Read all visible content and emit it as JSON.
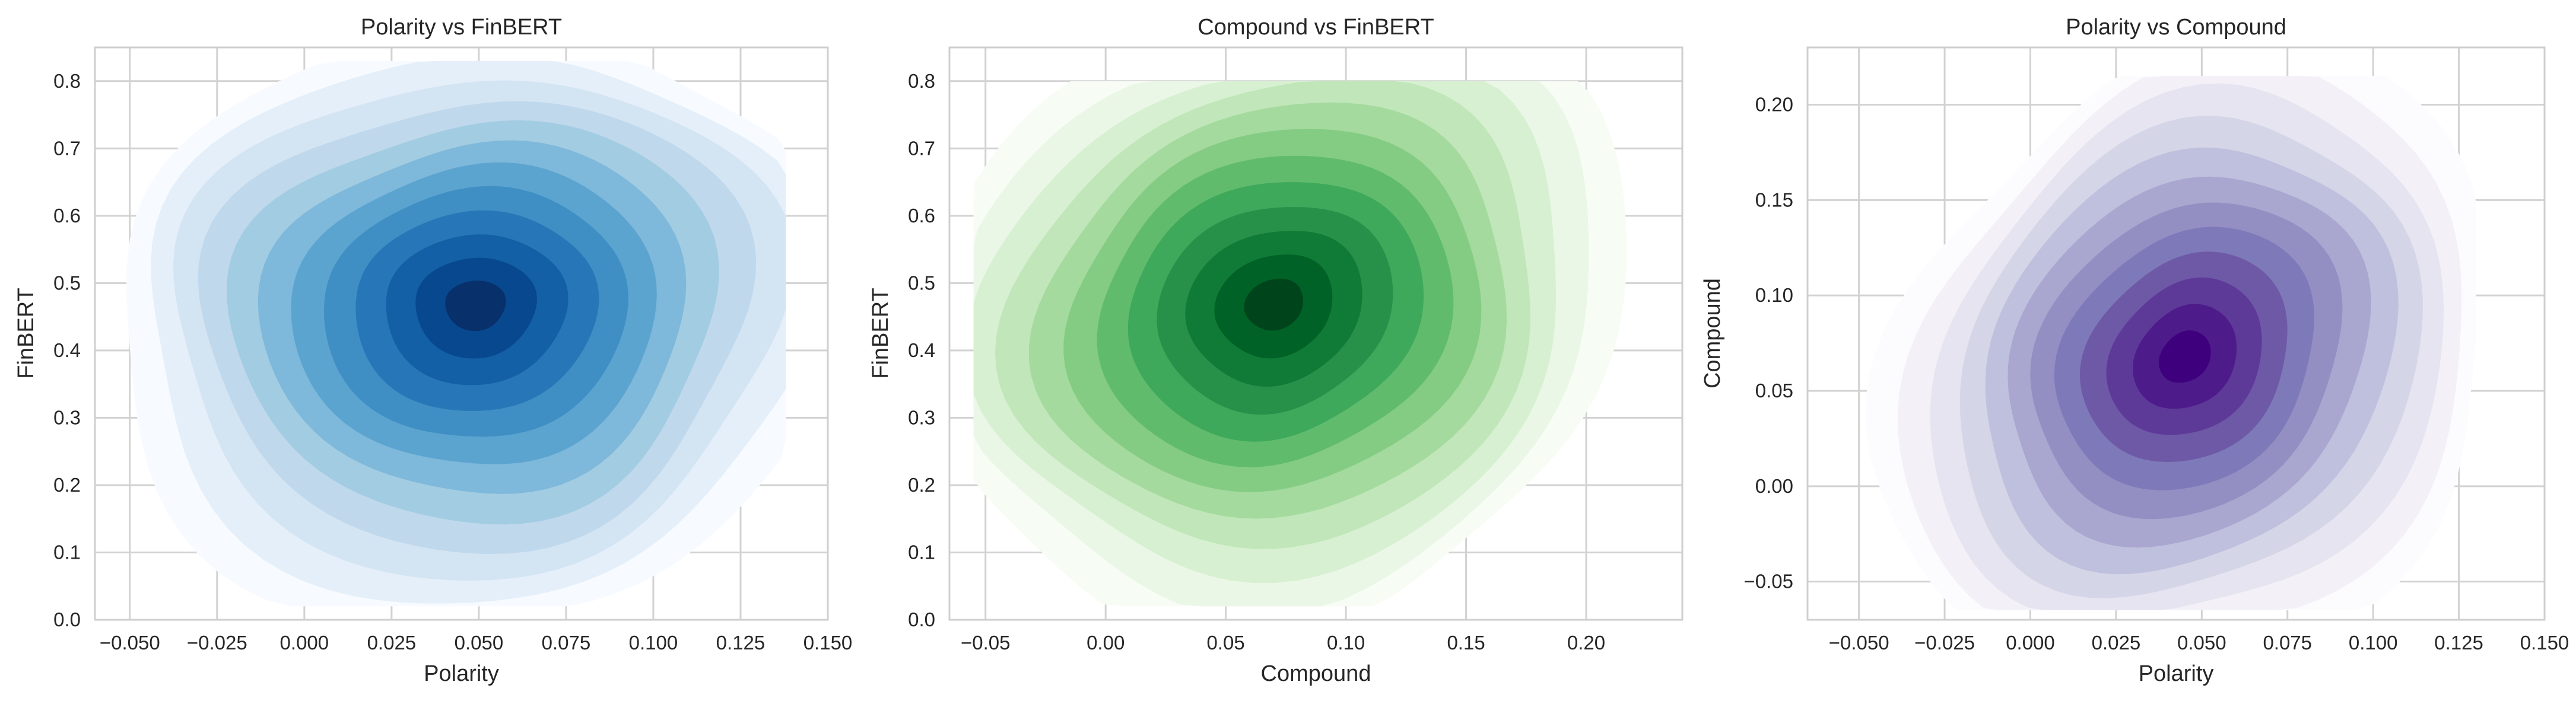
{
  "chart_data": [
    {
      "type": "contour",
      "title": "Polarity vs FinBERT",
      "xlabel": "Polarity",
      "ylabel": "FinBERT",
      "xlim": [
        -0.06,
        0.15
      ],
      "ylim": [
        0.0,
        0.85
      ],
      "xticks": [
        "−0.050",
        "−0.025",
        "0.000",
        "0.025",
        "0.050",
        "0.075",
        "0.100",
        "0.125",
        "0.150"
      ],
      "xtick_values": [
        -0.05,
        -0.025,
        0.0,
        0.025,
        0.05,
        0.075,
        0.1,
        0.125,
        0.15
      ],
      "yticks": [
        "0.0",
        "0.1",
        "0.2",
        "0.3",
        "0.4",
        "0.5",
        "0.6",
        "0.7",
        "0.8"
      ],
      "ytick_values": [
        0.0,
        0.1,
        0.2,
        0.3,
        0.4,
        0.5,
        0.6,
        0.7,
        0.8
      ],
      "peak": [
        0.049,
        0.47
      ],
      "extent_x": [
        -0.055,
        0.138
      ],
      "extent_y": [
        0.02,
        0.83
      ],
      "colormap": [
        "#f7fbff",
        "#deebf7",
        "#c6dbef",
        "#9ecae1",
        "#6baed6",
        "#4292c6",
        "#2171b5",
        "#08519c",
        "#08306b"
      ],
      "grid": true
    },
    {
      "type": "contour",
      "title": "Compound vs FinBERT",
      "xlabel": "Compound",
      "ylabel": "FinBERT",
      "xlim": [
        -0.065,
        0.24
      ],
      "ylim": [
        0.0,
        0.85
      ],
      "xticks": [
        "−0.05",
        "0.00",
        "0.05",
        "0.10",
        "0.15",
        "0.20"
      ],
      "xtick_values": [
        -0.05,
        0.0,
        0.05,
        0.1,
        0.15,
        0.2
      ],
      "yticks": [
        "0.0",
        "0.1",
        "0.2",
        "0.3",
        "0.4",
        "0.5",
        "0.6",
        "0.7",
        "0.8"
      ],
      "ytick_values": [
        0.0,
        0.1,
        0.2,
        0.3,
        0.4,
        0.5,
        0.6,
        0.7,
        0.8
      ],
      "peak": [
        0.07,
        0.47
      ],
      "extent_x": [
        -0.055,
        0.22
      ],
      "extent_y": [
        0.02,
        0.8
      ],
      "colormap": [
        "#f7fcf5",
        "#e5f5e0",
        "#c7e9c0",
        "#a1d99b",
        "#74c476",
        "#41ab5d",
        "#238b45",
        "#006d2c",
        "#00441b"
      ],
      "grid": true
    },
    {
      "type": "contour",
      "title": "Polarity vs Compound",
      "xlabel": "Polarity",
      "ylabel": "Compound",
      "xlim": [
        -0.065,
        0.15
      ],
      "ylim": [
        -0.07,
        0.23
      ],
      "xticks": [
        "−0.050",
        "−0.025",
        "0.000",
        "0.025",
        "0.050",
        "0.075",
        "0.100",
        "0.125",
        "0.150"
      ],
      "xtick_values": [
        -0.05,
        -0.025,
        0.0,
        0.025,
        0.05,
        0.075,
        0.1,
        0.125,
        0.15
      ],
      "yticks": [
        "−0.05",
        "0.00",
        "0.05",
        "0.10",
        "0.15",
        "0.20"
      ],
      "ytick_values": [
        -0.05,
        0.0,
        0.05,
        0.1,
        0.15,
        0.2
      ],
      "peak": [
        0.045,
        0.068
      ],
      "extent_x": [
        -0.055,
        0.13
      ],
      "extent_y": [
        -0.065,
        0.215
      ],
      "colormap": [
        "#fcfbfd",
        "#efedf5",
        "#dadaeb",
        "#bcbddc",
        "#9e9ac8",
        "#807dba",
        "#6a51a3",
        "#54278f",
        "#3f007d"
      ],
      "grid": true
    }
  ]
}
